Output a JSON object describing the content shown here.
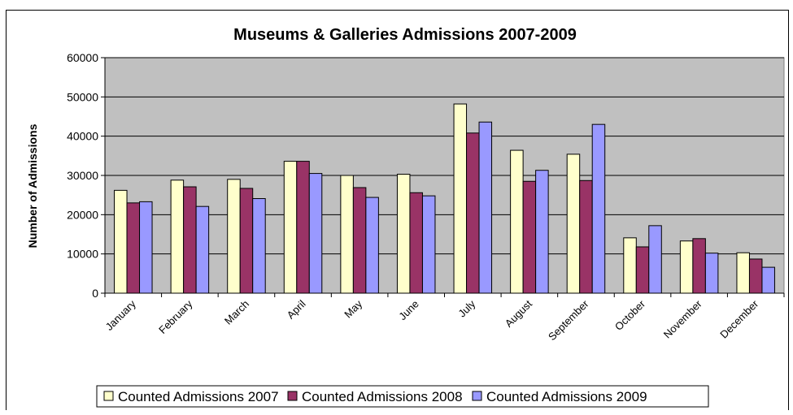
{
  "chart_data": {
    "type": "bar",
    "title": "Museums & Galleries Admissions 2007-2009",
    "xlabel": "",
    "ylabel": "Number of Admissions",
    "ylim": [
      0,
      60000
    ],
    "yticks": [
      "0",
      "10000",
      "20000",
      "30000",
      "40000",
      "50000",
      "60000"
    ],
    "grid": true,
    "legend_position": "bottom",
    "categories": [
      "January",
      "February",
      "March",
      "April",
      "May",
      "June",
      "July",
      "August",
      "September",
      "October",
      "November",
      "December"
    ],
    "series": [
      {
        "name": "Counted Admissions 2007",
        "color": "#FFFFCC",
        "values": [
          26200,
          28800,
          29000,
          33600,
          30000,
          30300,
          48200,
          36400,
          35400,
          14100,
          13300,
          10300
        ]
      },
      {
        "name": "Counted Admissions 2008",
        "color": "#993366",
        "values": [
          23000,
          27100,
          26700,
          33600,
          26900,
          25600,
          40800,
          28500,
          28700,
          11800,
          13900,
          8700
        ]
      },
      {
        "name": "Counted Admissions 2009",
        "color": "#9999FF",
        "values": [
          23300,
          22100,
          24100,
          30500,
          24400,
          24800,
          43600,
          31300,
          43000,
          17200,
          10200,
          6600
        ]
      }
    ],
    "plot_background": "#C0C0C0",
    "grid_color": "#000000"
  }
}
